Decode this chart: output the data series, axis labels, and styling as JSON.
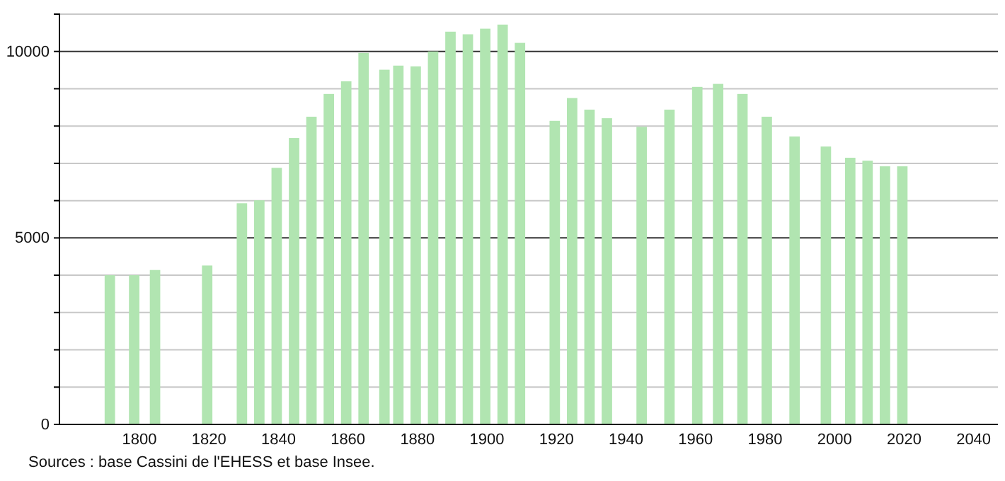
{
  "chart_data": {
    "type": "bar",
    "x": [
      1793,
      1800,
      1806,
      1821,
      1831,
      1836,
      1841,
      1846,
      1851,
      1856,
      1861,
      1866,
      1872,
      1876,
      1881,
      1886,
      1891,
      1896,
      1901,
      1906,
      1911,
      1921,
      1926,
      1931,
      1936,
      1946,
      1954,
      1962,
      1968,
      1975,
      1982,
      1990,
      1999,
      2006,
      2011,
      2016,
      2021
    ],
    "values": [
      4000,
      4000,
      4140,
      4260,
      5930,
      6010,
      6880,
      7680,
      8250,
      8860,
      9200,
      9960,
      9510,
      9620,
      9600,
      10000,
      10530,
      10460,
      10610,
      10720,
      10230,
      8140,
      8750,
      8440,
      8210,
      7980,
      8440,
      9050,
      9130,
      8860,
      8250,
      7720,
      7450,
      7150,
      7070,
      6920,
      6920
    ],
    "color": "#b1e5b1",
    "xlim": [
      1777,
      2047
    ],
    "xticks": [
      1800,
      1820,
      1840,
      1860,
      1880,
      1900,
      1920,
      1940,
      1960,
      1980,
      2000,
      2020,
      2040
    ],
    "ylim": [
      0,
      11000
    ],
    "yticks": [
      0,
      {
        "value": 1000,
        "label": null
      },
      {
        "value": 2000,
        "label": null
      },
      {
        "value": 3000,
        "label": null
      },
      {
        "value": 4000,
        "label": null
      },
      5000,
      {
        "value": 6000,
        "label": null
      },
      {
        "value": 7000,
        "label": null
      },
      {
        "value": 8000,
        "label": null
      },
      {
        "value": 9000,
        "label": null
      },
      10000,
      {
        "value": 11000,
        "label": null
      }
    ],
    "grid": "y",
    "annotations": [
      "Sources : base Cassini de l'EHESS et base Insee."
    ]
  }
}
